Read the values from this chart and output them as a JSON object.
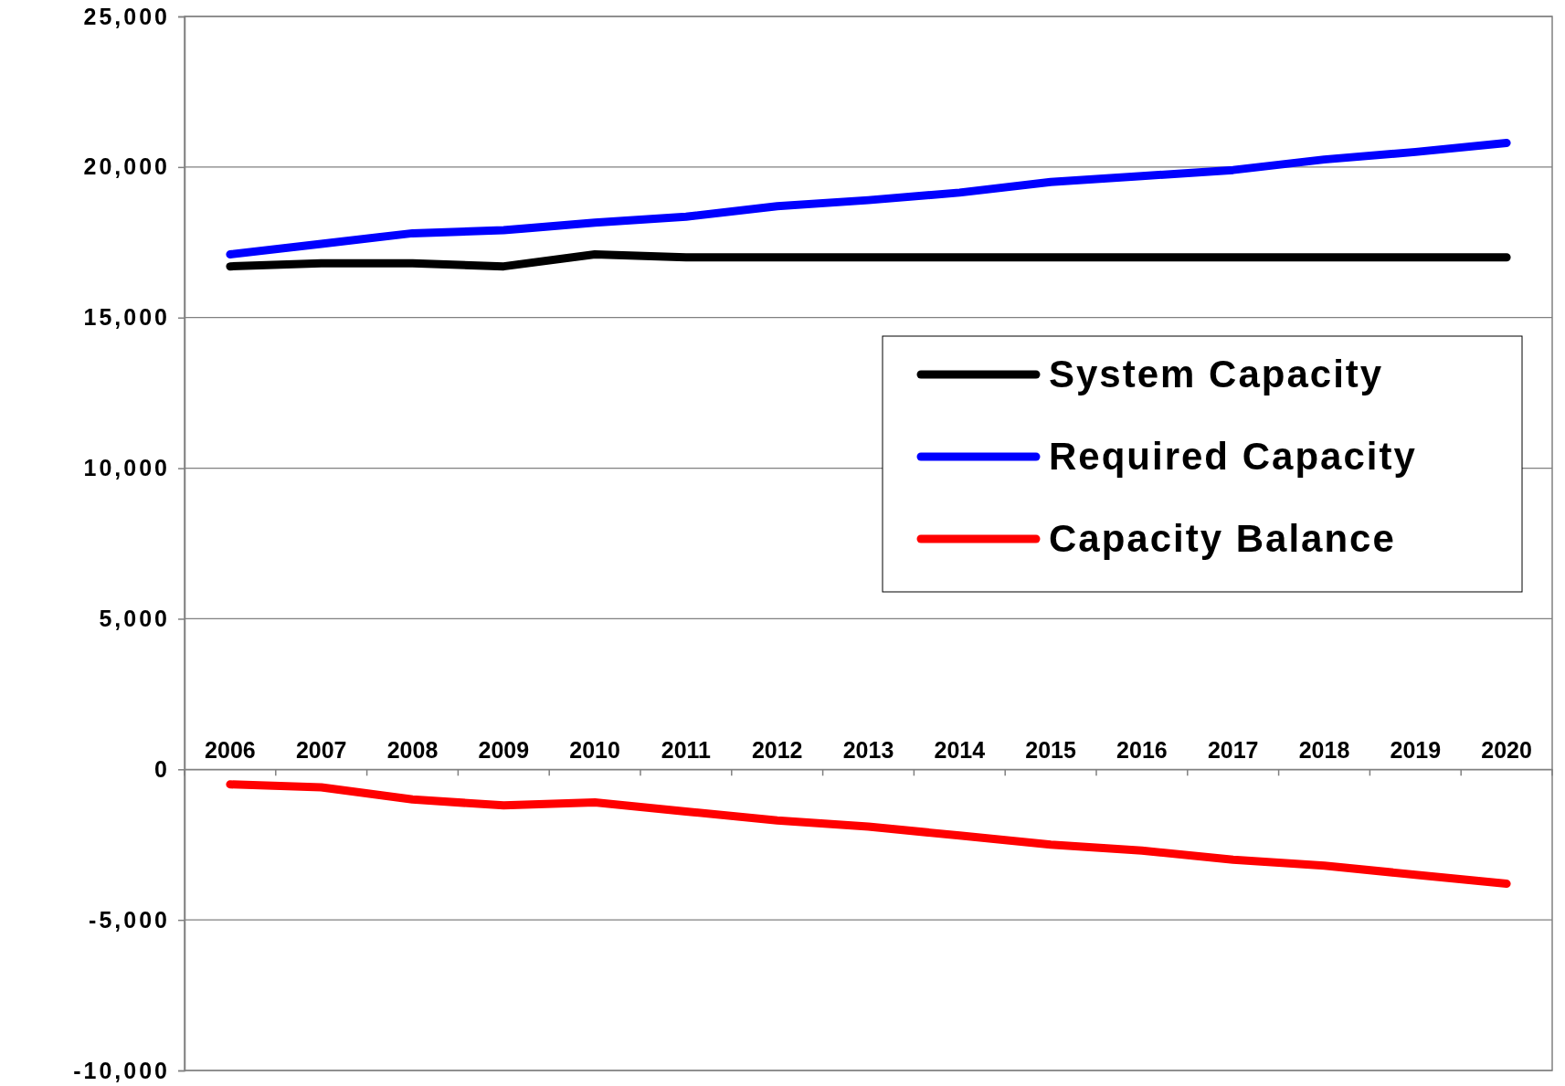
{
  "chart_data": {
    "type": "line",
    "categories": [
      "2006",
      "2007",
      "2008",
      "2009",
      "2010",
      "2011",
      "2012",
      "2013",
      "2014",
      "2015",
      "2016",
      "2017",
      "2018",
      "2019",
      "2020"
    ],
    "series": [
      {
        "name": "System Capacity",
        "color": "#000000",
        "values": [
          16700,
          16800,
          16800,
          16700,
          17100,
          17000,
          17000,
          17000,
          17000,
          17000,
          17000,
          17000,
          17000,
          17000,
          17000
        ]
      },
      {
        "name": "Required Capacity",
        "color": "#0000ff",
        "values": [
          17100,
          17450,
          17800,
          17900,
          18150,
          18350,
          18700,
          18900,
          19150,
          19500,
          19700,
          19900,
          20250,
          20500,
          20800
        ]
      },
      {
        "name": "Capacity Balance",
        "color": "#ff0000",
        "values": [
          -500,
          -600,
          -1000,
          -1200,
          -1100,
          -1400,
          -1700,
          -1900,
          -2200,
          -2500,
          -2700,
          -3000,
          -3200,
          -3500,
          -3800
        ]
      }
    ],
    "ylim": [
      -10000,
      25000
    ],
    "yticks": [
      {
        "value": -10000,
        "label": "-10,000"
      },
      {
        "value": -5000,
        "label": "-5,000"
      },
      0,
      {
        "value": 5000,
        "label": "5,000"
      },
      {
        "value": 10000,
        "label": "10,000"
      },
      {
        "value": 15000,
        "label": "15,000"
      },
      {
        "value": 20000,
        "label": "20,000"
      },
      {
        "value": 25000,
        "label": "25,000"
      }
    ],
    "grid": "y",
    "legend": "top right",
    "marker": "none",
    "line_style": "solid"
  }
}
